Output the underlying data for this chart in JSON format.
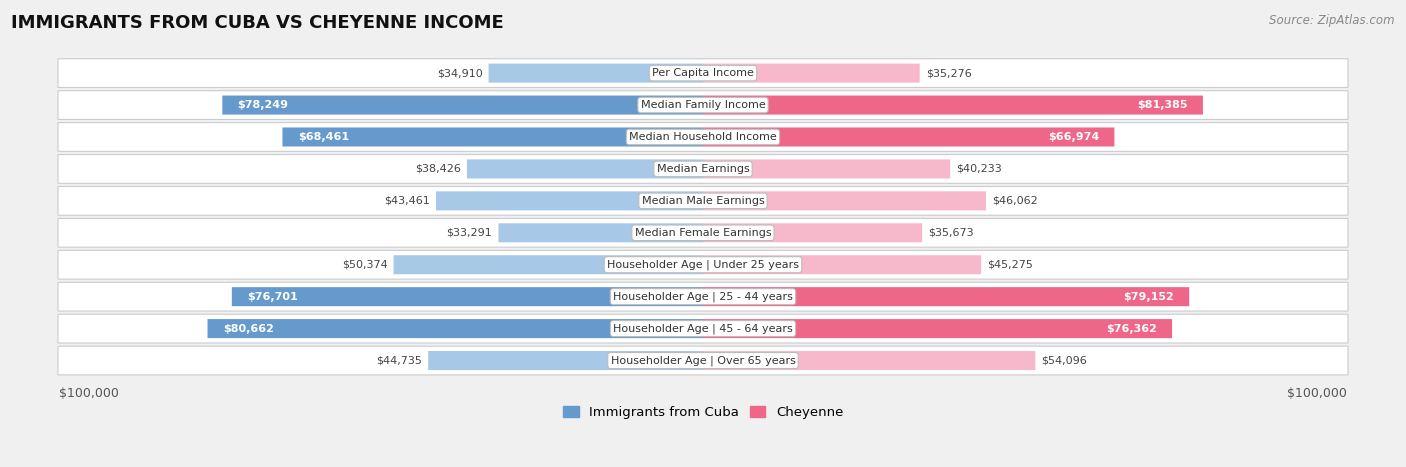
{
  "title": "IMMIGRANTS FROM CUBA VS CHEYENNE INCOME",
  "source": "Source: ZipAtlas.com",
  "categories": [
    "Per Capita Income",
    "Median Family Income",
    "Median Household Income",
    "Median Earnings",
    "Median Male Earnings",
    "Median Female Earnings",
    "Householder Age | Under 25 years",
    "Householder Age | 25 - 44 years",
    "Householder Age | 45 - 64 years",
    "Householder Age | Over 65 years"
  ],
  "cuba_values": [
    34910,
    78249,
    68461,
    38426,
    43461,
    33291,
    50374,
    76701,
    80662,
    44735
  ],
  "cheyenne_values": [
    35276,
    81385,
    66974,
    40233,
    46062,
    35673,
    45275,
    79152,
    76362,
    54096
  ],
  "cuba_labels": [
    "$34,910",
    "$78,249",
    "$68,461",
    "$38,426",
    "$43,461",
    "$33,291",
    "$50,374",
    "$76,701",
    "$80,662",
    "$44,735"
  ],
  "cheyenne_labels": [
    "$35,276",
    "$81,385",
    "$66,974",
    "$40,233",
    "$46,062",
    "$35,673",
    "$45,275",
    "$79,152",
    "$76,362",
    "$54,096"
  ],
  "cuba_color_light": "#a8c8e8",
  "cuba_color_dark": "#6699cc",
  "cheyenne_color_light": "#f8b8cc",
  "cheyenne_color_dark": "#ee6688",
  "max_value": 100000,
  "background_color": "#f0f0f0",
  "title_fontsize": 13,
  "legend_fontsize": 9.5,
  "inside_label_threshold": 55000
}
